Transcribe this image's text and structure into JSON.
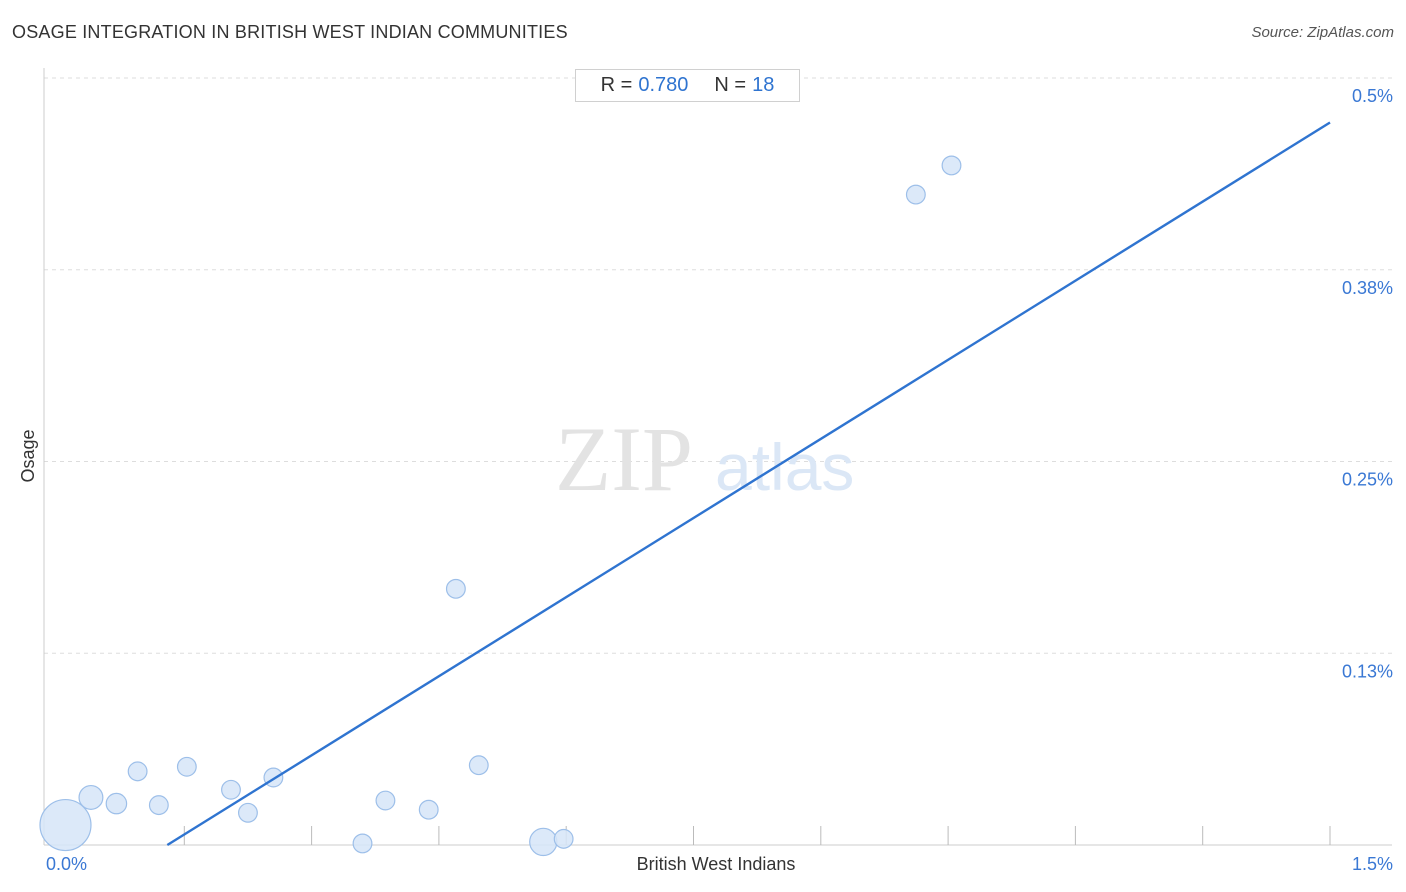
{
  "header": {
    "title": "OSAGE INTEGRATION IN BRITISH WEST INDIAN COMMUNITIES",
    "source": "Source: ZipAtlas.com"
  },
  "stats": {
    "r_label": "R =",
    "r_value": "0.780",
    "n_label": "N =",
    "n_value": "18"
  },
  "watermark": {
    "zip": "ZIP",
    "atlas": "atlas"
  },
  "colors": {
    "accent": "#2f74d0",
    "point_fill": "#d6e5f8",
    "point_stroke": "#9dbfe9",
    "grid": "#dddddd"
  },
  "chart_data": {
    "type": "scatter",
    "title": "OSAGE INTEGRATION IN BRITISH WEST INDIAN COMMUNITIES",
    "xlabel": "British West Indians",
    "ylabel": "Osage",
    "xlim": [
      0.0,
      1.5
    ],
    "ylim": [
      0.0,
      0.5
    ],
    "x_tick_labels": [
      {
        "value": 0.0,
        "label": "0.0%"
      },
      {
        "value": 1.5,
        "label": "1.5%"
      }
    ],
    "y_tick_labels": [
      {
        "value": 0.125,
        "label": "0.13%"
      },
      {
        "value": 0.25,
        "label": "0.25%"
      },
      {
        "value": 0.375,
        "label": "0.38%"
      },
      {
        "value": 0.5,
        "label": "0.5%"
      }
    ],
    "grid": true,
    "points": [
      {
        "x": 0.01,
        "y": 0.013,
        "size": 3.0
      },
      {
        "x": 0.04,
        "y": 0.031,
        "size": 1.4
      },
      {
        "x": 0.07,
        "y": 0.027,
        "size": 1.2
      },
      {
        "x": 0.095,
        "y": 0.048,
        "size": 1.1
      },
      {
        "x": 0.12,
        "y": 0.026,
        "size": 1.1
      },
      {
        "x": 0.153,
        "y": 0.051,
        "size": 1.1
      },
      {
        "x": 0.205,
        "y": 0.036,
        "size": 1.1
      },
      {
        "x": 0.225,
        "y": 0.021,
        "size": 1.1
      },
      {
        "x": 0.255,
        "y": 0.044,
        "size": 1.1
      },
      {
        "x": 0.36,
        "y": 0.001,
        "size": 1.1
      },
      {
        "x": 0.387,
        "y": 0.029,
        "size": 1.1
      },
      {
        "x": 0.438,
        "y": 0.023,
        "size": 1.1
      },
      {
        "x": 0.47,
        "y": 0.167,
        "size": 1.1
      },
      {
        "x": 0.497,
        "y": 0.052,
        "size": 1.1
      },
      {
        "x": 0.573,
        "y": 0.002,
        "size": 1.6
      },
      {
        "x": 0.597,
        "y": 0.004,
        "size": 1.1
      },
      {
        "x": 1.012,
        "y": 0.424,
        "size": 1.1
      },
      {
        "x": 1.054,
        "y": 0.443,
        "size": 1.1
      }
    ],
    "trendline": {
      "x": [
        0.13,
        1.5
      ],
      "y": [
        0.0,
        0.471
      ]
    }
  }
}
